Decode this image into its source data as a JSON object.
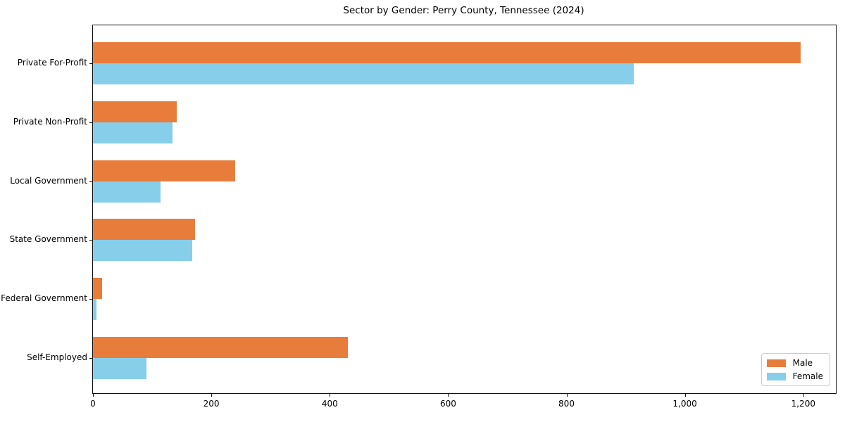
{
  "chart_data": {
    "type": "bar",
    "orientation": "horizontal",
    "title": "Sector by Gender: Perry County, Tennessee (2024)",
    "categories": [
      "Private For-Profit",
      "Private Non-Profit",
      "Local Government",
      "State Government",
      "Federal Government",
      "Self-Employed"
    ],
    "series": [
      {
        "name": "Male",
        "color": "#e87d3b",
        "values": [
          1195,
          141,
          240,
          173,
          15,
          430
        ]
      },
      {
        "name": "Female",
        "color": "#87ceeb",
        "values": [
          913,
          134,
          114,
          168,
          6,
          90
        ]
      }
    ],
    "xlabel": "",
    "ylabel": "",
    "xlim": [
      0,
      1255
    ],
    "x_ticks": [
      0,
      200,
      400,
      600,
      800,
      1000,
      1200
    ],
    "x_tick_labels": [
      "0",
      "200",
      "400",
      "600",
      "800",
      "1,000",
      "1,200"
    ],
    "grid": false,
    "legend_position": "lower right",
    "colors": {
      "male": "#e87d3b",
      "female": "#87ceeb",
      "spine": "#0f0f0f",
      "background": "#ffffff",
      "text": "#000000",
      "legend_border": "#cccccc"
    }
  }
}
